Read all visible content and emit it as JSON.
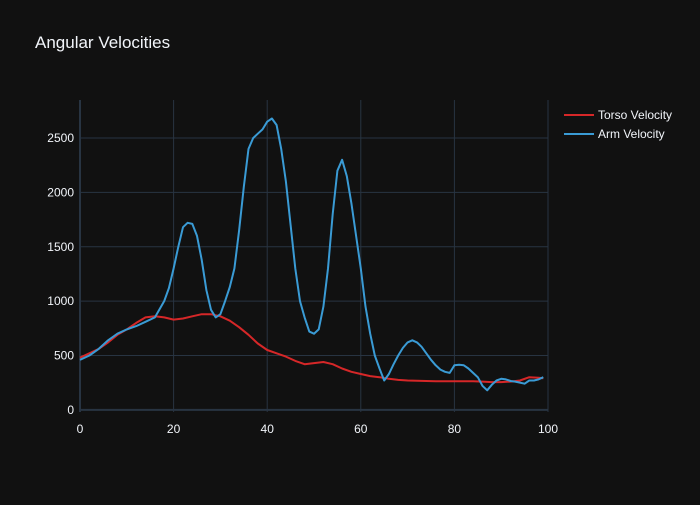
{
  "chart_data": {
    "type": "line",
    "title": "Angular Velocities",
    "xlabel": "",
    "ylabel": "",
    "xlim": [
      0,
      100
    ],
    "ylim": [
      -20,
      2850
    ],
    "xticks": [
      0,
      20,
      40,
      60,
      80,
      100
    ],
    "yticks": [
      0,
      500,
      1000,
      1500,
      2000,
      2500
    ],
    "grid": true,
    "legend_position": "top-right",
    "colors": {
      "background": "#111111",
      "grid": "#283442",
      "text": "#f2f5fa"
    },
    "series": [
      {
        "name": "Torso Velocity",
        "color": "#d62728",
        "x": [
          0,
          2,
          4,
          6,
          8,
          10,
          12,
          14,
          16,
          18,
          20,
          22,
          24,
          26,
          28,
          30,
          32,
          34,
          36,
          38,
          40,
          42,
          44,
          46,
          48,
          50,
          52,
          54,
          56,
          58,
          60,
          62,
          64,
          66,
          68,
          70,
          72,
          74,
          76,
          78,
          80,
          82,
          84,
          86,
          88,
          90,
          92,
          94,
          96,
          98,
          99
        ],
        "y": [
          480,
          520,
          560,
          620,
          690,
          740,
          800,
          850,
          860,
          850,
          830,
          840,
          860,
          880,
          880,
          860,
          820,
          760,
          690,
          610,
          550,
          520,
          490,
          450,
          420,
          430,
          440,
          420,
          380,
          350,
          330,
          310,
          300,
          285,
          275,
          270,
          268,
          265,
          262,
          262,
          262,
          262,
          262,
          260,
          255,
          255,
          260,
          270,
          300,
          295,
          290
        ]
      },
      {
        "name": "Arm Velocity",
        "color": "#3a9bd5",
        "x": [
          0,
          2,
          4,
          6,
          8,
          10,
          12,
          14,
          16,
          18,
          19,
          20,
          21,
          22,
          23,
          24,
          25,
          26,
          27,
          28,
          29,
          30,
          31,
          32,
          33,
          34,
          35,
          36,
          37,
          38,
          39,
          40,
          41,
          42,
          43,
          44,
          45,
          46,
          47,
          48,
          49,
          50,
          51,
          52,
          53,
          54,
          55,
          56,
          57,
          58,
          59,
          60,
          61,
          62,
          63,
          64,
          65,
          66,
          67,
          68,
          69,
          70,
          71,
          72,
          73,
          74,
          75,
          76,
          77,
          78,
          79,
          80,
          81,
          82,
          83,
          84,
          85,
          86,
          87,
          88,
          89,
          90,
          91,
          92,
          93,
          94,
          95,
          96,
          97,
          98,
          99
        ],
        "y": [
          460,
          500,
          560,
          640,
          700,
          740,
          770,
          810,
          850,
          1000,
          1120,
          1300,
          1500,
          1680,
          1720,
          1710,
          1600,
          1380,
          1100,
          920,
          850,
          880,
          1000,
          1130,
          1300,
          1650,
          2050,
          2400,
          2500,
          2540,
          2580,
          2650,
          2680,
          2620,
          2400,
          2100,
          1700,
          1300,
          1000,
          850,
          720,
          700,
          740,
          950,
          1300,
          1800,
          2200,
          2300,
          2150,
          1900,
          1600,
          1300,
          950,
          700,
          500,
          380,
          270,
          330,
          420,
          500,
          570,
          620,
          640,
          620,
          580,
          520,
          460,
          410,
          370,
          350,
          340,
          410,
          415,
          410,
          380,
          340,
          300,
          220,
          180,
          230,
          270,
          285,
          280,
          265,
          260,
          250,
          240,
          270,
          270,
          280,
          300
        ]
      }
    ]
  }
}
